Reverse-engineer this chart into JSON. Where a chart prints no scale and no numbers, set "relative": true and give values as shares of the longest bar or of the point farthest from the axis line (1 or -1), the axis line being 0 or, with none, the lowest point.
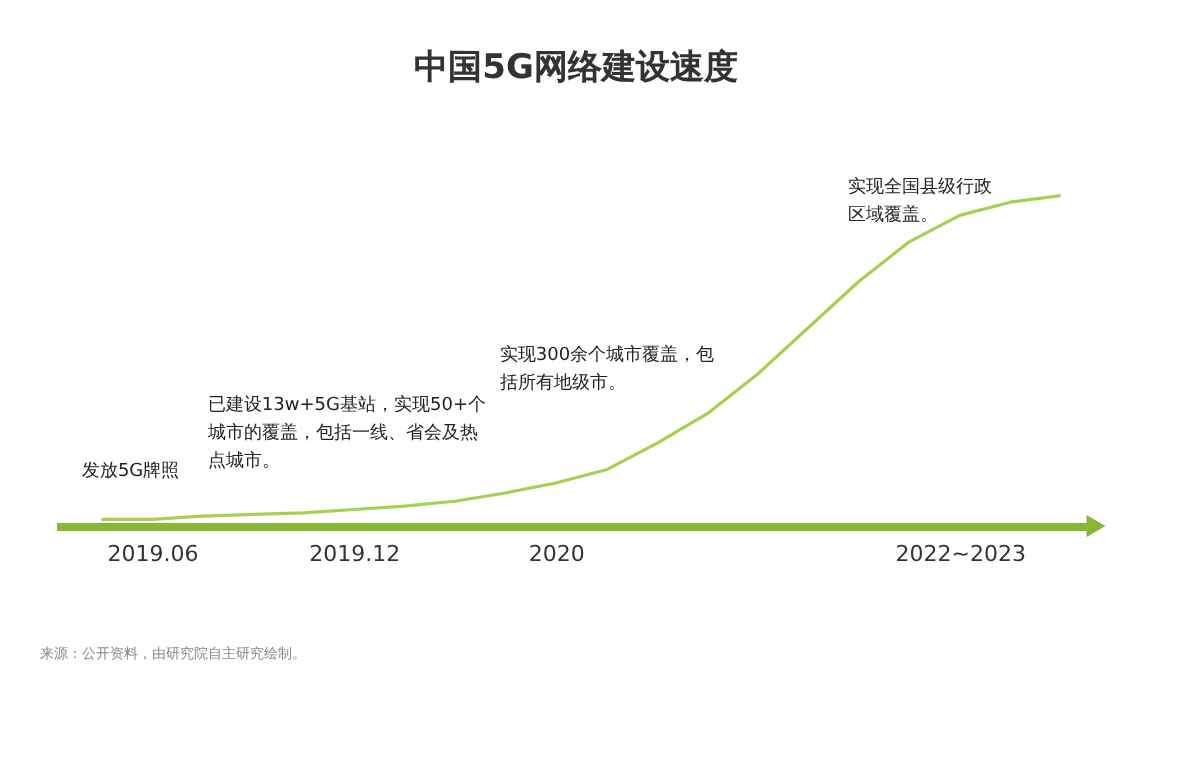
{
  "chart_data": {
    "type": "line",
    "title": "中国5G网络建设速度",
    "relative": true,
    "categories": [
      null,
      "2019.06",
      null,
      null,
      null,
      "2019.12",
      null,
      null,
      null,
      "2020",
      null,
      null,
      null,
      null,
      null,
      null,
      null,
      "2022~2023",
      null,
      null
    ],
    "series": [
      {
        "color": "#a8d050",
        "values": [
          0.02,
          0.02,
          0.03,
          0.035,
          0.04,
          0.05,
          0.06,
          0.075,
          0.1,
          0.13,
          0.17,
          0.25,
          0.34,
          0.46,
          0.6,
          0.74,
          0.86,
          0.94,
          0.98,
          1
        ]
      }
    ],
    "annotations": [
      "发放5G牌照",
      "已建设13w+5G基站，实现50+个城市的覆盖，包括一线、省会及热点城市。",
      "实现300余个城市覆盖，包括所有地级市。",
      "实现全国县级行政区域覆盖。",
      "来源：公开资料，由研究院自主研究绘制。"
    ],
    "grid": false,
    "marker": "none",
    "line_style": "solid"
  }
}
